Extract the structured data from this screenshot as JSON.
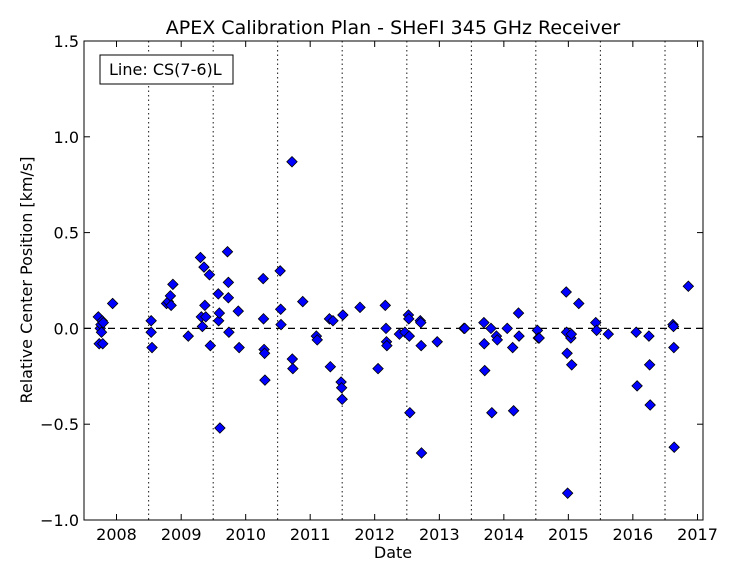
{
  "chart_data": {
    "type": "scatter",
    "title": "APEX Calibration Plan - SHeFI 345 GHz Receiver",
    "xlabel": "Date",
    "ylabel": "Relative Center Position [km/s]",
    "annotation": "Line: CS(7-6)L",
    "xlim": [
      "2007-07-01",
      "2017-02-01"
    ],
    "ylim": [
      -1.0,
      1.5
    ],
    "x_tick_labels": [
      "2008",
      "2009",
      "2010",
      "2011",
      "2012",
      "2013",
      "2014",
      "2015",
      "2016",
      "2017"
    ],
    "y_tick_labels": [
      "−1.0",
      "−0.5",
      "0.0",
      "0.5",
      "1.0",
      "1.5"
    ],
    "y_tick_values": [
      -1.0,
      -0.5,
      0.0,
      0.5,
      1.0,
      1.5
    ],
    "reference_line": 0.0,
    "vertical_lines": [
      "2008-07-01",
      "2009-07-01",
      "2010-07-01",
      "2011-07-01",
      "2012-07-01",
      "2013-07-01",
      "2014-07-01",
      "2015-07-01",
      "2016-07-01"
    ],
    "marker_color": "#0000ff",
    "points": [
      {
        "x": "2007-09-20",
        "y": 0.06
      },
      {
        "x": "2007-09-25",
        "y": -0.08
      },
      {
        "x": "2007-10-01",
        "y": 0.0
      },
      {
        "x": "2007-10-05",
        "y": 0.02
      },
      {
        "x": "2007-10-08",
        "y": -0.02
      },
      {
        "x": "2007-10-12",
        "y": 0.04
      },
      {
        "x": "2007-10-15",
        "y": -0.08
      },
      {
        "x": "2007-10-18",
        "y": 0.03
      },
      {
        "x": "2007-12-10",
        "y": 0.13
      },
      {
        "x": "2008-07-15",
        "y": 0.04
      },
      {
        "x": "2008-07-15",
        "y": -0.02
      },
      {
        "x": "2008-07-20",
        "y": -0.1
      },
      {
        "x": "2008-10-10",
        "y": 0.13
      },
      {
        "x": "2008-10-20",
        "y": 0.14
      },
      {
        "x": "2008-11-01",
        "y": 0.17
      },
      {
        "x": "2008-11-05",
        "y": 0.12
      },
      {
        "x": "2008-11-15",
        "y": 0.23
      },
      {
        "x": "2009-02-10",
        "y": -0.04
      },
      {
        "x": "2009-04-20",
        "y": 0.37
      },
      {
        "x": "2009-04-25",
        "y": 0.06
      },
      {
        "x": "2009-05-01",
        "y": 0.01
      },
      {
        "x": "2009-05-10",
        "y": 0.32
      },
      {
        "x": "2009-05-15",
        "y": 0.12
      },
      {
        "x": "2009-05-20",
        "y": 0.06
      },
      {
        "x": "2009-06-10",
        "y": 0.28
      },
      {
        "x": "2009-06-15",
        "y": -0.09
      },
      {
        "x": "2009-07-30",
        "y": 0.18
      },
      {
        "x": "2009-08-01",
        "y": 0.04
      },
      {
        "x": "2009-08-05",
        "y": 0.08
      },
      {
        "x": "2009-08-08",
        "y": -0.52
      },
      {
        "x": "2009-09-20",
        "y": 0.4
      },
      {
        "x": "2009-09-25",
        "y": 0.24
      },
      {
        "x": "2009-09-25",
        "y": 0.16
      },
      {
        "x": "2009-09-28",
        "y": -0.02
      },
      {
        "x": "2009-11-20",
        "y": 0.09
      },
      {
        "x": "2009-11-25",
        "y": -0.1
      },
      {
        "x": "2010-04-10",
        "y": 0.26
      },
      {
        "x": "2010-04-12",
        "y": 0.05
      },
      {
        "x": "2010-04-15",
        "y": -0.11
      },
      {
        "x": "2010-04-18",
        "y": -0.13
      },
      {
        "x": "2010-04-20",
        "y": -0.27
      },
      {
        "x": "2010-07-15",
        "y": 0.3
      },
      {
        "x": "2010-07-18",
        "y": 0.1
      },
      {
        "x": "2010-07-20",
        "y": 0.02
      },
      {
        "x": "2010-09-20",
        "y": 0.87
      },
      {
        "x": "2010-09-22",
        "y": -0.16
      },
      {
        "x": "2010-09-25",
        "y": -0.21
      },
      {
        "x": "2010-11-20",
        "y": 0.14
      },
      {
        "x": "2011-02-05",
        "y": -0.04
      },
      {
        "x": "2011-02-10",
        "y": -0.06
      },
      {
        "x": "2011-04-20",
        "y": 0.05
      },
      {
        "x": "2011-04-25",
        "y": -0.2
      },
      {
        "x": "2011-05-10",
        "y": 0.04
      },
      {
        "x": "2011-06-25",
        "y": -0.28
      },
      {
        "x": "2011-06-28",
        "y": -0.31
      },
      {
        "x": "2011-07-01",
        "y": -0.37
      },
      {
        "x": "2011-07-05",
        "y": 0.07
      },
      {
        "x": "2011-10-10",
        "y": 0.11
      },
      {
        "x": "2012-01-20",
        "y": -0.21
      },
      {
        "x": "2012-03-01",
        "y": 0.12
      },
      {
        "x": "2012-03-05",
        "y": 0.0
      },
      {
        "x": "2012-03-08",
        "y": -0.07
      },
      {
        "x": "2012-03-10",
        "y": -0.09
      },
      {
        "x": "2012-05-20",
        "y": -0.03
      },
      {
        "x": "2012-06-20",
        "y": -0.02
      },
      {
        "x": "2012-07-10",
        "y": 0.07
      },
      {
        "x": "2012-07-12",
        "y": 0.05
      },
      {
        "x": "2012-07-15",
        "y": -0.04
      },
      {
        "x": "2012-07-18",
        "y": -0.44
      },
      {
        "x": "2012-09-15",
        "y": 0.04
      },
      {
        "x": "2012-09-18",
        "y": 0.03
      },
      {
        "x": "2012-09-20",
        "y": -0.09
      },
      {
        "x": "2012-09-22",
        "y": -0.65
      },
      {
        "x": "2012-12-20",
        "y": -0.07
      },
      {
        "x": "2013-05-20",
        "y": 0.0
      },
      {
        "x": "2013-05-25",
        "y": 0.0
      },
      {
        "x": "2013-09-10",
        "y": 0.03
      },
      {
        "x": "2013-09-12",
        "y": -0.08
      },
      {
        "x": "2013-09-15",
        "y": -0.22
      },
      {
        "x": "2013-10-20",
        "y": 0.0
      },
      {
        "x": "2013-10-25",
        "y": -0.44
      },
      {
        "x": "2013-11-20",
        "y": -0.04
      },
      {
        "x": "2013-11-25",
        "y": -0.06
      },
      {
        "x": "2014-01-20",
        "y": 0.0
      },
      {
        "x": "2014-02-20",
        "y": -0.1
      },
      {
        "x": "2014-02-25",
        "y": -0.43
      },
      {
        "x": "2014-03-25",
        "y": 0.08
      },
      {
        "x": "2014-03-28",
        "y": -0.04
      },
      {
        "x": "2014-07-10",
        "y": -0.01
      },
      {
        "x": "2014-07-15",
        "y": -0.05
      },
      {
        "x": "2014-07-20",
        "y": -0.05
      },
      {
        "x": "2014-12-20",
        "y": 0.19
      },
      {
        "x": "2014-12-22",
        "y": -0.02
      },
      {
        "x": "2014-12-25",
        "y": -0.13
      },
      {
        "x": "2014-12-28",
        "y": -0.86
      },
      {
        "x": "2015-01-15",
        "y": -0.05
      },
      {
        "x": "2015-01-18",
        "y": -0.03
      },
      {
        "x": "2015-01-20",
        "y": -0.19
      },
      {
        "x": "2015-03-01",
        "y": 0.13
      },
      {
        "x": "2015-06-05",
        "y": 0.03
      },
      {
        "x": "2015-06-10",
        "y": -0.01
      },
      {
        "x": "2015-08-15",
        "y": -0.03
      },
      {
        "x": "2016-01-20",
        "y": -0.02
      },
      {
        "x": "2016-01-25",
        "y": -0.3
      },
      {
        "x": "2016-04-01",
        "y": -0.04
      },
      {
        "x": "2016-04-05",
        "y": -0.19
      },
      {
        "x": "2016-04-08",
        "y": -0.4
      },
      {
        "x": "2016-08-15",
        "y": 0.02
      },
      {
        "x": "2016-08-18",
        "y": 0.01
      },
      {
        "x": "2016-08-20",
        "y": -0.1
      },
      {
        "x": "2016-08-22",
        "y": -0.62
      },
      {
        "x": "2016-11-10",
        "y": 0.22
      }
    ]
  }
}
